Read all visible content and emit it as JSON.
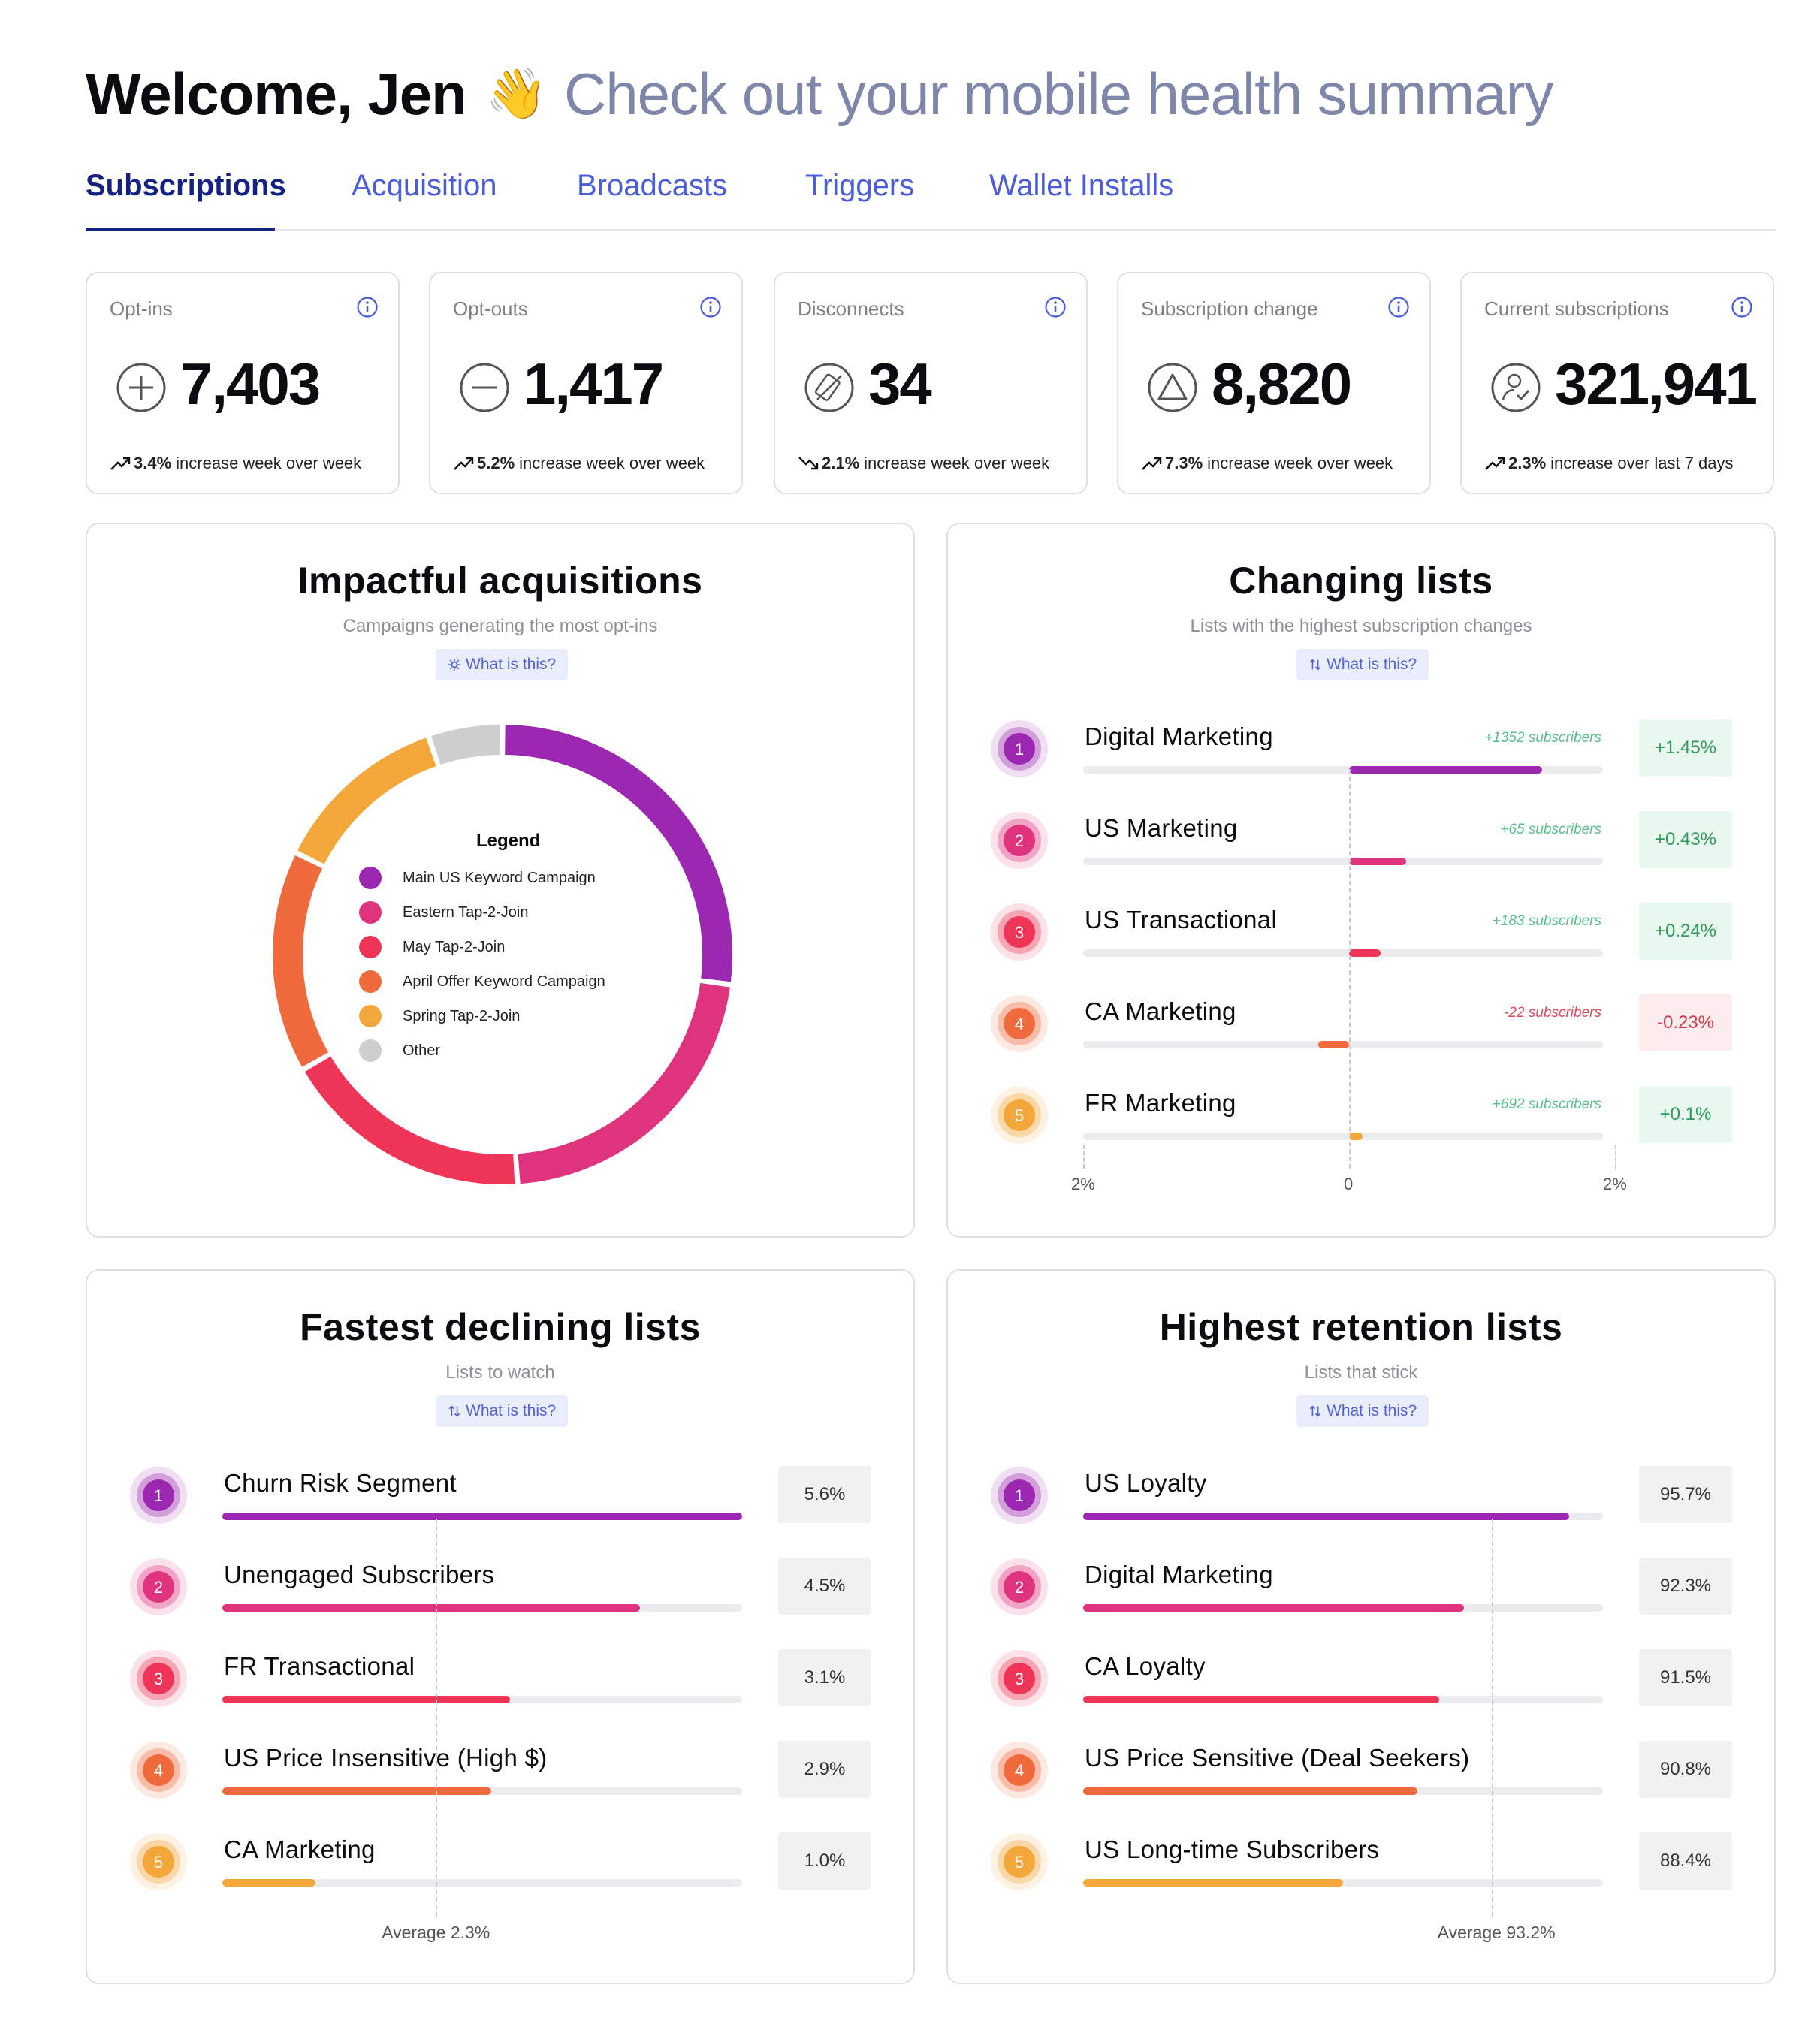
{
  "header": {
    "welcome": "Welcome, Jen",
    "wave_icon": "waving-hand-icon",
    "tagline": "Check out your mobile health summary"
  },
  "tabs": [
    {
      "label": "Subscriptions",
      "active": true
    },
    {
      "label": "Acquisition",
      "active": false
    },
    {
      "label": "Broadcasts",
      "active": false
    },
    {
      "label": "Triggers",
      "active": false
    },
    {
      "label": "Wallet Installs",
      "active": false
    }
  ],
  "stats": [
    {
      "title": "Opt-ins",
      "icon": "plus-circle-icon",
      "value": "7,403",
      "trend": "up",
      "pct": "3.4%",
      "text": "increase week over week"
    },
    {
      "title": "Opt-outs",
      "icon": "minus-circle-icon",
      "value": "1,417",
      "trend": "up",
      "pct": "5.2%",
      "text": "increase week over week"
    },
    {
      "title": "Disconnects",
      "icon": "disconnected-phone-icon",
      "value": "34",
      "trend": "down",
      "pct": "2.1%",
      "text": "increase week over week"
    },
    {
      "title": "Subscription change",
      "icon": "delta-circle-icon",
      "value": "8,820",
      "trend": "up",
      "pct": "7.3%",
      "text": "increase week over week"
    },
    {
      "title": "Current subscriptions",
      "icon": "user-check-icon",
      "value": "321,941",
      "trend": "up",
      "pct": "2.3%",
      "text": "increase over last 7 days"
    }
  ],
  "acquisitions": {
    "title": "Impactful acquisitions",
    "subtitle": "Campaigns generating the most opt-ins",
    "what_label": "What is this?",
    "legend_title": "Legend",
    "chart_data": {
      "type": "pie",
      "title": "Impactful acquisitions",
      "labels": [
        "Main US Keyword Campaign",
        "Eastern Tap-2-Join",
        "May Tap-2-Join",
        "April Offer Keyword Campaign",
        "Spring Tap-2-Join",
        "Other"
      ],
      "values": [
        26,
        21,
        17,
        15,
        12,
        5
      ],
      "colors": [
        "#9c27b0",
        "#e0337d",
        "#ee3558",
        "#ef6b3d",
        "#f3a73a",
        "#cfcfcf"
      ]
    }
  },
  "changing": {
    "title": "Changing lists",
    "subtitle": "Lists with the highest subscription changes",
    "what_label": "What is this?",
    "axis": [
      "2%",
      "0",
      "2%"
    ],
    "chart_data": {
      "type": "bar",
      "categories": [
        "Digital Marketing",
        "US Marketing",
        "US Transactional",
        "CA Marketing",
        "FR Marketing"
      ],
      "values": [
        1.45,
        0.43,
        0.24,
        -0.23,
        0.1
      ],
      "xlim": [
        -2,
        2
      ]
    },
    "rows": [
      {
        "rank": "1",
        "label": "Digital Marketing",
        "note": "+1352 subscribers",
        "value": "+1.45%",
        "sign": "pos"
      },
      {
        "rank": "2",
        "label": "US Marketing",
        "note": "+65 subscribers",
        "value": "+0.43%",
        "sign": "pos"
      },
      {
        "rank": "3",
        "label": "US Transactional",
        "note": "+183 subscribers",
        "value": "+0.24%",
        "sign": "pos"
      },
      {
        "rank": "4",
        "label": "CA Marketing",
        "note": "-22 subscribers",
        "value": "-0.23%",
        "sign": "neg"
      },
      {
        "rank": "5",
        "label": "FR Marketing",
        "note": "+692 subscribers",
        "value": "+0.1%",
        "sign": "pos"
      }
    ]
  },
  "declining": {
    "title": "Fastest declining lists",
    "subtitle": "Lists to watch",
    "what_label": "What is this?",
    "average_label": "Average 2.3%",
    "chart_data": {
      "type": "bar",
      "categories": [
        "Churn Risk Segment",
        "Unengaged Subscribers",
        "FR Transactional",
        "US Price Insensitive (High $)",
        "CA Marketing"
      ],
      "values": [
        5.6,
        4.5,
        3.1,
        2.9,
        1.0
      ],
      "average": 2.3
    },
    "rows": [
      {
        "rank": "1",
        "label": "Churn Risk Segment",
        "value": "5.6%"
      },
      {
        "rank": "2",
        "label": "Unengaged Subscribers",
        "value": "4.5%"
      },
      {
        "rank": "3",
        "label": "FR Transactional",
        "value": "3.1%"
      },
      {
        "rank": "4",
        "label": "US Price Insensitive (High $)",
        "value": "2.9%"
      },
      {
        "rank": "5",
        "label": "CA Marketing",
        "value": "1.0%"
      }
    ]
  },
  "retention": {
    "title": "Highest retention lists",
    "subtitle": "Lists that stick",
    "what_label": "What is this?",
    "average_label": "Average 93.2%",
    "chart_data": {
      "type": "bar",
      "categories": [
        "US Loyalty",
        "Digital Marketing",
        "CA Loyalty",
        "US Price Sensitive (Deal Seekers)",
        "US Long-time Subscribers"
      ],
      "values": [
        95.7,
        92.3,
        91.5,
        90.8,
        88.4
      ],
      "average": 93.2
    },
    "rows": [
      {
        "rank": "1",
        "label": "US Loyalty",
        "value": "95.7%"
      },
      {
        "rank": "2",
        "label": "Digital Marketing",
        "value": "92.3%"
      },
      {
        "rank": "3",
        "label": "CA Loyalty",
        "value": "91.5%"
      },
      {
        "rank": "4",
        "label": "US Price Sensitive (Deal Seekers)",
        "value": "90.8%"
      },
      {
        "rank": "5",
        "label": "US Long-time Subscribers",
        "value": "88.4%"
      }
    ]
  },
  "rank_colors": [
    "#9c27b0",
    "#e0337d",
    "#ee3558",
    "#ef6b3d",
    "#f3a73a"
  ]
}
